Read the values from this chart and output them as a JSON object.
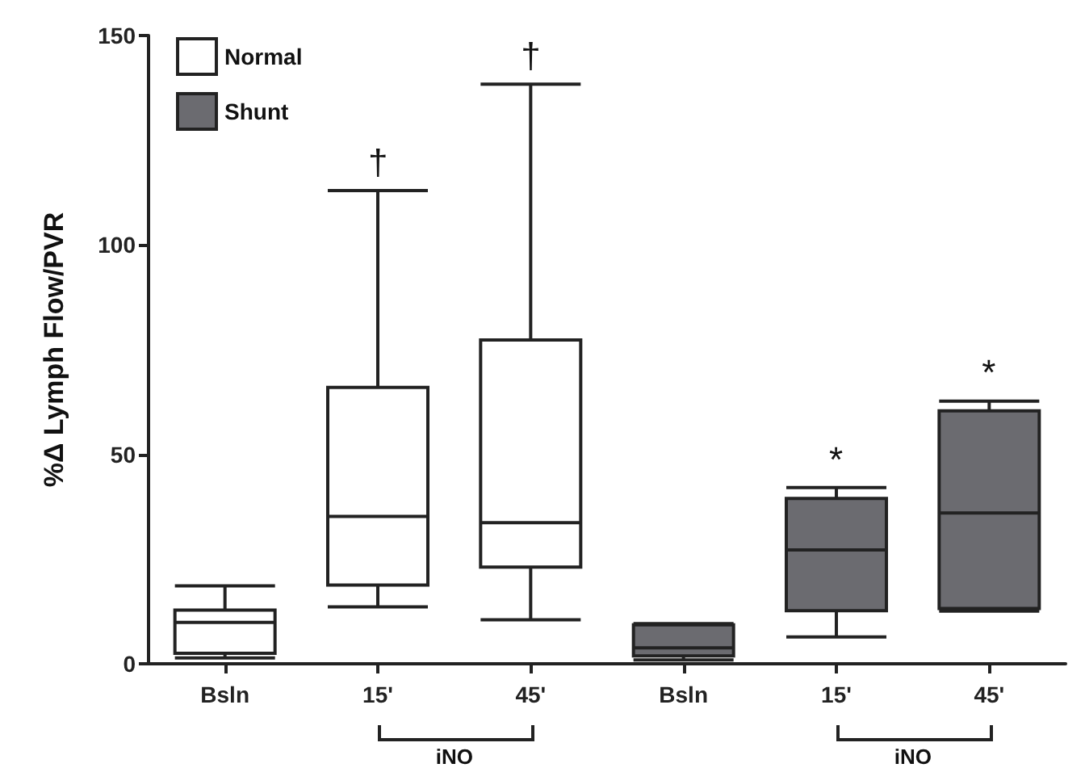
{
  "chart_data": {
    "type": "box",
    "ylabel": "%Δ Lymph Flow/PVR",
    "categories": [
      "Bsln",
      "15'",
      "45'",
      "Bsln",
      "15'",
      "45'"
    ],
    "series": [
      {
        "name": "Normal",
        "color": "#ffffff",
        "boxes": [
          {
            "low": 1.4,
            "q1": 2.5,
            "median": 9.9,
            "q3": 12.8,
            "high": 18.6
          },
          {
            "low": 13.6,
            "q1": 18.8,
            "median": 35.2,
            "q3": 66,
            "high": 113
          },
          {
            "low": 10.5,
            "q1": 23.1,
            "median": 33.7,
            "q3": 77.3,
            "high": 138.4
          },
          null,
          null,
          null
        ]
      },
      {
        "name": "Shunt",
        "color": "#6b6b70",
        "boxes": [
          null,
          null,
          null,
          {
            "low": 0.9,
            "q1": 1.9,
            "median": 3.8,
            "q3": 9.3,
            "high": 9.6
          },
          {
            "low": 6.4,
            "q1": 12.7,
            "median": 27.2,
            "q3": 39.5,
            "high": 42.1
          },
          {
            "low": 12.6,
            "q1": 13.2,
            "median": 36,
            "q3": 60.4,
            "high": 62.7
          }
        ]
      }
    ],
    "ylim": [
      0,
      150
    ],
    "yticks": [
      0,
      50,
      100,
      150
    ],
    "grid": false,
    "legend": "top left",
    "annotations": [
      "†",
      "†",
      "*",
      "*",
      "iNO",
      "iNO"
    ]
  }
}
